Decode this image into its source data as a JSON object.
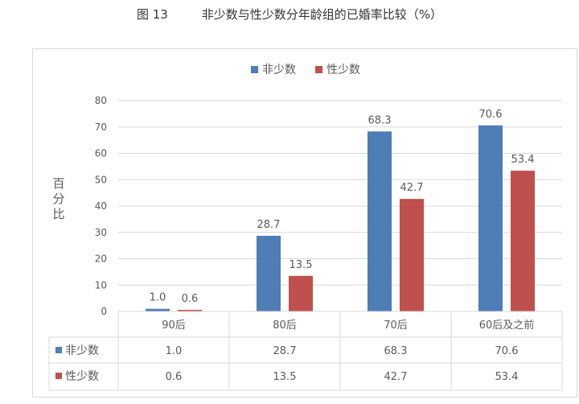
{
  "figure_title": {
    "number": "图 13",
    "text": "非少数与性少数分年龄组的已婚率比较（%）"
  },
  "colors": {
    "series_1": "#4f7db5",
    "series_2": "#c0504d",
    "gridline": "#d9d9d9",
    "axis_text": "#595959"
  },
  "chart_data": {
    "type": "bar",
    "title": "",
    "xlabel": "",
    "ylabel": "百分比",
    "ylim": [
      0,
      80
    ],
    "yticks": [
      0,
      10,
      20,
      30,
      40,
      50,
      60,
      70,
      80
    ],
    "grid": true,
    "legend_position": "top-center",
    "categories": [
      "90后",
      "80后",
      "70后",
      "60后及之前"
    ],
    "series": [
      {
        "name": "非少数",
        "values": [
          1.0,
          28.7,
          68.3,
          70.6
        ],
        "labels": [
          "1.0",
          "28.7",
          "68.3",
          "70.6"
        ]
      },
      {
        "name": "性少数",
        "values": [
          0.6,
          13.5,
          42.7,
          53.4
        ],
        "labels": [
          "0.6",
          "13.5",
          "42.7",
          "53.4"
        ]
      }
    ],
    "data_table": true
  }
}
